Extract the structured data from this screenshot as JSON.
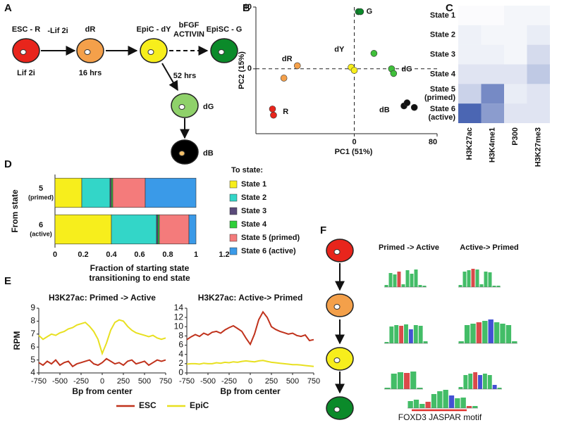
{
  "panel_labels": [
    "A",
    "B",
    "C",
    "D",
    "E",
    "F"
  ],
  "panels": {
    "A": {
      "nodes": [
        {
          "label": "ESC - R",
          "sublabel": "Lif 2i"
        },
        {
          "label": "dR",
          "sublabel": "16 hrs"
        },
        {
          "label": "EpiC - dY"
        },
        {
          "label": "EpiSC - G"
        },
        {
          "label": "dG"
        },
        {
          "label": "dB"
        }
      ],
      "arrows": [
        "-Lif 2i",
        [
          "bFGF",
          "ACTIVIN"
        ],
        "52 hrs"
      ]
    },
    "F": {
      "columns": [
        "Primed -> Active",
        "Active-> Primed"
      ],
      "caption": "FOXD3 JASPAR motif"
    }
  },
  "chart_data": [
    {
      "type": "scatter",
      "xlabel": "PC1 (51%)",
      "ylabel": "PC2 (15%)",
      "xlim": [
        -95,
        80
      ],
      "ylim": [
        -42,
        40
      ],
      "xticks": [
        0,
        80
      ],
      "yticks": [
        0,
        40
      ],
      "zero_lines": true,
      "series": [
        {
          "name": "R",
          "color": "#e8251c",
          "x": [
            -79,
            -78
          ],
          "y": [
            -26,
            -30
          ]
        },
        {
          "name": "dR",
          "color": "#f4a04a",
          "x": [
            -55,
            -68
          ],
          "y": [
            2,
            -6
          ]
        },
        {
          "name": "dY",
          "color": "#f7ee1c",
          "x": [
            -3,
            0
          ],
          "y": [
            1,
            -1
          ]
        },
        {
          "name": "G",
          "color": "#0b8a2a",
          "x": [
            4,
            6
          ],
          "y": [
            37,
            37
          ]
        },
        {
          "name": "dG",
          "color": "#3fbf3a",
          "x": [
            19,
            36,
            38
          ],
          "y": [
            10,
            0,
            -3
          ]
        },
        {
          "name": "dB",
          "color": "#111111",
          "x": [
            48,
            51,
            58
          ],
          "y": [
            -24,
            -22,
            -25
          ]
        }
      ]
    },
    {
      "type": "heatmap",
      "color": "#2c4ba6",
      "rows": [
        "State 1",
        "State 2",
        "State 3",
        "State 4",
        [
          "State 5",
          "(primed)"
        ],
        [
          "State 6",
          "(active)"
        ]
      ],
      "columns": [
        "H3K27ac",
        "H3K4me1",
        "P300",
        "H3K27me3"
      ],
      "values": [
        [
          0.02,
          0.02,
          0.05,
          0.05
        ],
        [
          0.08,
          0.05,
          0.05,
          0.1
        ],
        [
          0.08,
          0.08,
          0.05,
          0.2
        ],
        [
          0.15,
          0.15,
          0.15,
          0.3
        ],
        [
          0.25,
          0.65,
          0.1,
          0.15
        ],
        [
          0.85,
          0.55,
          0.15,
          0.15
        ]
      ]
    },
    {
      "type": "bar",
      "orientation": "horizontal",
      "stacked": true,
      "ylabel": "From state",
      "xlabel": [
        "Fraction of starting state",
        "transitioning to end state"
      ],
      "legend_title": "To state:",
      "categories": [
        [
          "5",
          "(primed)"
        ],
        [
          "6",
          "(active)"
        ]
      ],
      "xlim": [
        0,
        1.2
      ],
      "xticks": [
        0,
        0.2,
        0.4,
        0.6,
        0.8,
        1,
        1.2
      ],
      "series": [
        {
          "name": "State 1",
          "color": "#f7ee1c",
          "values": [
            0.19,
            0.4
          ]
        },
        {
          "name": "State 2",
          "color": "#33d6c8",
          "values": [
            0.2,
            0.32
          ]
        },
        {
          "name": "State 3",
          "color": "#5a4a7a",
          "values": [
            0.01,
            0.01
          ]
        },
        {
          "name": "State 4",
          "color": "#2fcf3a",
          "values": [
            0.01,
            0.01
          ]
        },
        {
          "name": "State 5 (primed)",
          "color": "#f47b7b",
          "values": [
            0.23,
            0.21
          ]
        },
        {
          "name": "State 6 (active)",
          "color": "#3a9ae8",
          "values": [
            0.36,
            0.05
          ]
        }
      ]
    },
    {
      "type": "line",
      "title": "H3K27ac: Primed -> Active",
      "xlabel": "Bp from center",
      "ylabel": "RPM",
      "xlim": [
        -750,
        750
      ],
      "ylim": [
        4,
        9
      ],
      "xticks": [
        -750,
        -500,
        -250,
        0,
        250,
        500,
        750
      ],
      "yticks": [
        4,
        5,
        6,
        7,
        8,
        9
      ],
      "x": [
        -750,
        -700,
        -650,
        -600,
        -550,
        -500,
        -450,
        -400,
        -350,
        -300,
        -250,
        -200,
        -150,
        -100,
        -50,
        0,
        50,
        100,
        150,
        200,
        250,
        300,
        350,
        400,
        450,
        500,
        550,
        600,
        650,
        700,
        750
      ],
      "series": [
        {
          "name": "ESC",
          "color": "#c0321c",
          "values": [
            4.8,
            4.6,
            4.9,
            4.7,
            5.0,
            4.6,
            4.8,
            4.9,
            4.5,
            4.7,
            4.8,
            4.9,
            5.0,
            4.7,
            4.6,
            4.8,
            5.1,
            4.9,
            4.7,
            4.8,
            4.6,
            4.9,
            5.0,
            4.7,
            4.8,
            4.9,
            4.6,
            4.8,
            5.0,
            4.9,
            5.0
          ]
        },
        {
          "name": "EpiC",
          "color": "#e8e020",
          "values": [
            6.9,
            6.6,
            6.8,
            7.0,
            6.9,
            7.1,
            7.2,
            7.4,
            7.5,
            7.7,
            7.8,
            7.9,
            7.6,
            7.2,
            6.6,
            5.5,
            6.3,
            7.3,
            7.9,
            8.1,
            8.0,
            7.6,
            7.3,
            7.1,
            7.0,
            6.9,
            6.8,
            6.9,
            6.7,
            6.6,
            6.7
          ]
        }
      ]
    },
    {
      "type": "line",
      "title": "H3K27ac: Active-> Primed",
      "xlabel": "Bp from center",
      "xlim": [
        -750,
        750
      ],
      "ylim": [
        0,
        14
      ],
      "xticks": [
        -750,
        -500,
        -250,
        0,
        250,
        500,
        750
      ],
      "yticks": [
        0,
        2,
        4,
        6,
        8,
        10,
        12,
        14
      ],
      "x": [
        -750,
        -700,
        -650,
        -600,
        -550,
        -500,
        -450,
        -400,
        -350,
        -300,
        -250,
        -200,
        -150,
        -100,
        -50,
        0,
        50,
        100,
        150,
        200,
        250,
        300,
        350,
        400,
        450,
        500,
        550,
        600,
        650,
        700,
        750
      ],
      "series": [
        {
          "color": "#c0321c",
          "values": [
            7.2,
            7.8,
            8.3,
            7.9,
            8.6,
            8.2,
            8.8,
            9.0,
            8.6,
            9.3,
            9.8,
            10.2,
            9.6,
            9.0,
            7.5,
            6.2,
            8.4,
            11.5,
            13.2,
            12.0,
            10.0,
            9.4,
            9.0,
            8.7,
            8.4,
            8.6,
            8.1,
            7.9,
            8.2,
            7.0,
            7.2
          ]
        },
        {
          "color": "#e8e020",
          "values": [
            1.9,
            2.0,
            2.0,
            1.9,
            2.1,
            2.0,
            2.0,
            2.2,
            2.1,
            2.3,
            2.2,
            2.4,
            2.3,
            2.5,
            2.6,
            2.5,
            2.4,
            2.6,
            2.7,
            2.5,
            2.3,
            2.2,
            2.1,
            2.0,
            1.9,
            1.8,
            1.8,
            1.7,
            1.6,
            1.5,
            1.4
          ]
        }
      ]
    }
  ]
}
